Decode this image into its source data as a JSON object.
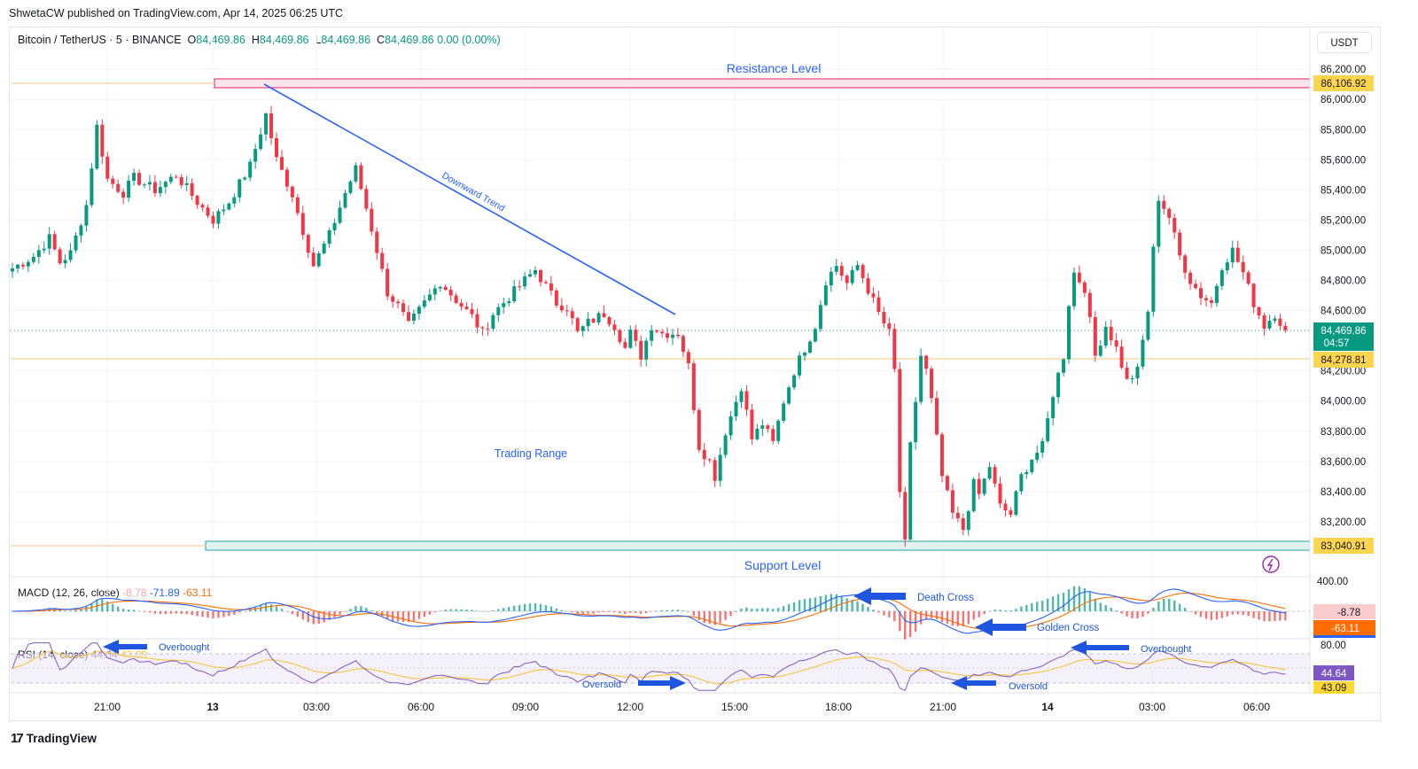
{
  "publisher": "ShwetaCW published on TradingView.com, Apr 14, 2025 06:25 UTC",
  "brand": "TradingView",
  "symbol": {
    "name": "Bitcoin / TetherUS · 5 · BINANCE",
    "o_label": "O",
    "o": "84,469.86",
    "h_label": "H",
    "h": "84,469.86",
    "l_label": "L",
    "l": "84,469.86",
    "c_label": "C",
    "c": "84,469.86",
    "change": "0.00 (0.00%)"
  },
  "currency": "USDT",
  "colors": {
    "up": "#089981",
    "down": "#f23645",
    "trend": "#2962ff",
    "resistance": "#e91e63",
    "support": "#089981",
    "level_line": "#f7c57f"
  },
  "chart_data": {
    "type": "candlestick",
    "title": "Bitcoin / TetherUS · 5 · BINANCE",
    "x_ticks": [
      "21:00",
      "13",
      "03:00",
      "06:00",
      "09:00",
      "12:00",
      "15:00",
      "18:00",
      "21:00",
      "14",
      "03:00",
      "06:00"
    ],
    "y_ticks": [
      "86,200.00",
      "86,000.00",
      "85,800.00",
      "85,600.00",
      "85,400.00",
      "85,200.00",
      "85,000.00",
      "84,800.00",
      "84,600.00",
      "84,200.00",
      "84,000.00",
      "83,800.00",
      "83,600.00",
      "83,400.00",
      "83,200.00"
    ],
    "y_range": [
      82900,
      86300
    ],
    "price_path": [
      [
        0,
        84880
      ],
      [
        4,
        84960
      ],
      [
        7,
        85080
      ],
      [
        9,
        84920
      ],
      [
        11,
        84980
      ],
      [
        14,
        85300
      ],
      [
        16,
        85820
      ],
      [
        18,
        85470
      ],
      [
        21,
        85380
      ],
      [
        23,
        85480
      ],
      [
        27,
        85400
      ],
      [
        31,
        85500
      ],
      [
        35,
        85320
      ],
      [
        38,
        85200
      ],
      [
        41,
        85320
      ],
      [
        45,
        85560
      ],
      [
        48,
        85900
      ],
      [
        50,
        85600
      ],
      [
        53,
        85370
      ],
      [
        55,
        85130
      ],
      [
        57,
        84900
      ],
      [
        60,
        85100
      ],
      [
        63,
        85380
      ],
      [
        65,
        85540
      ],
      [
        67,
        85280
      ],
      [
        69,
        85000
      ],
      [
        71,
        84720
      ],
      [
        73,
        84630
      ],
      [
        75,
        84500
      ],
      [
        78,
        84650
      ],
      [
        81,
        84790
      ],
      [
        84,
        84670
      ],
      [
        87,
        84560
      ],
      [
        89,
        84450
      ],
      [
        91,
        84580
      ],
      [
        94,
        84690
      ],
      [
        97,
        84800
      ],
      [
        99,
        84870
      ],
      [
        101,
        84760
      ],
      [
        103,
        84650
      ],
      [
        105,
        84620
      ],
      [
        107,
        84450
      ],
      [
        109,
        84520
      ],
      [
        112,
        84580
      ],
      [
        114,
        84500
      ],
      [
        116,
        84350
      ],
      [
        117,
        84450
      ],
      [
        119,
        84300
      ],
      [
        121,
        84500
      ],
      [
        123,
        84450
      ],
      [
        126,
        84450
      ],
      [
        128,
        84230
      ],
      [
        130,
        83700
      ],
      [
        132,
        83600
      ],
      [
        133,
        83500
      ],
      [
        135,
        83800
      ],
      [
        138,
        84100
      ],
      [
        140,
        83750
      ],
      [
        142,
        83850
      ],
      [
        144,
        83720
      ],
      [
        146,
        84000
      ],
      [
        148,
        84200
      ],
      [
        150,
        84350
      ],
      [
        152,
        84500
      ],
      [
        154,
        84800
      ],
      [
        156,
        84900
      ],
      [
        158,
        84780
      ],
      [
        160,
        84900
      ],
      [
        162,
        84740
      ],
      [
        164,
        84580
      ],
      [
        166,
        84450
      ],
      [
        167,
        84200
      ],
      [
        168,
        83400
      ],
      [
        169,
        83050
      ],
      [
        170,
        83700
      ],
      [
        172,
        84300
      ],
      [
        173,
        84200
      ],
      [
        174,
        84000
      ],
      [
        176,
        83500
      ],
      [
        178,
        83250
      ],
      [
        180,
        83150
      ],
      [
        182,
        83450
      ],
      [
        183,
        83380
      ],
      [
        185,
        83570
      ],
      [
        187,
        83300
      ],
      [
        189,
        83250
      ],
      [
        191,
        83500
      ],
      [
        193,
        83620
      ],
      [
        195,
        83700
      ],
      [
        197,
        84050
      ],
      [
        199,
        84300
      ],
      [
        200,
        84650
      ],
      [
        201,
        84850
      ],
      [
        203,
        84750
      ],
      [
        205,
        84300
      ],
      [
        207,
        84500
      ],
      [
        209,
        84350
      ],
      [
        211,
        84130
      ],
      [
        213,
        84200
      ],
      [
        215,
        84600
      ],
      [
        216,
        85000
      ],
      [
        217,
        85350
      ],
      [
        219,
        85220
      ],
      [
        221,
        84960
      ],
      [
        223,
        84800
      ],
      [
        225,
        84700
      ],
      [
        227,
        84650
      ],
      [
        229,
        84900
      ],
      [
        231,
        85000
      ],
      [
        233,
        84850
      ],
      [
        235,
        84650
      ],
      [
        237,
        84500
      ],
      [
        239,
        84580
      ],
      [
        241,
        84470
      ]
    ],
    "levels": [
      {
        "label": "Resistance Level",
        "value": 86106.92,
        "value_text": "86,106.92"
      },
      {
        "label": "Support Level",
        "value": 83040.91,
        "value_text": "83,040.91"
      },
      {
        "label": "",
        "value": 84278.81,
        "value_text": "84,278.81"
      },
      {
        "label": "",
        "value": 84469.86,
        "value_text": "84,469.86",
        "countdown": "04:57"
      }
    ],
    "annotations": [
      "Downward Trend",
      "Trading Range"
    ],
    "macd": {
      "label": "MACD (12, 26, close)",
      "histogram": "-8.78",
      "macd": "-71.89",
      "signal": "-63.11",
      "axis": "400.00",
      "annotations": [
        "Death Cross",
        "Golden Cross"
      ]
    },
    "rsi": {
      "label": "RSI (14, close)",
      "value": "44.64",
      "ma": "43.09",
      "axis": "80.00",
      "annotations": [
        "Overbought",
        "Oversold",
        "Oversold",
        "Overbought"
      ]
    }
  }
}
